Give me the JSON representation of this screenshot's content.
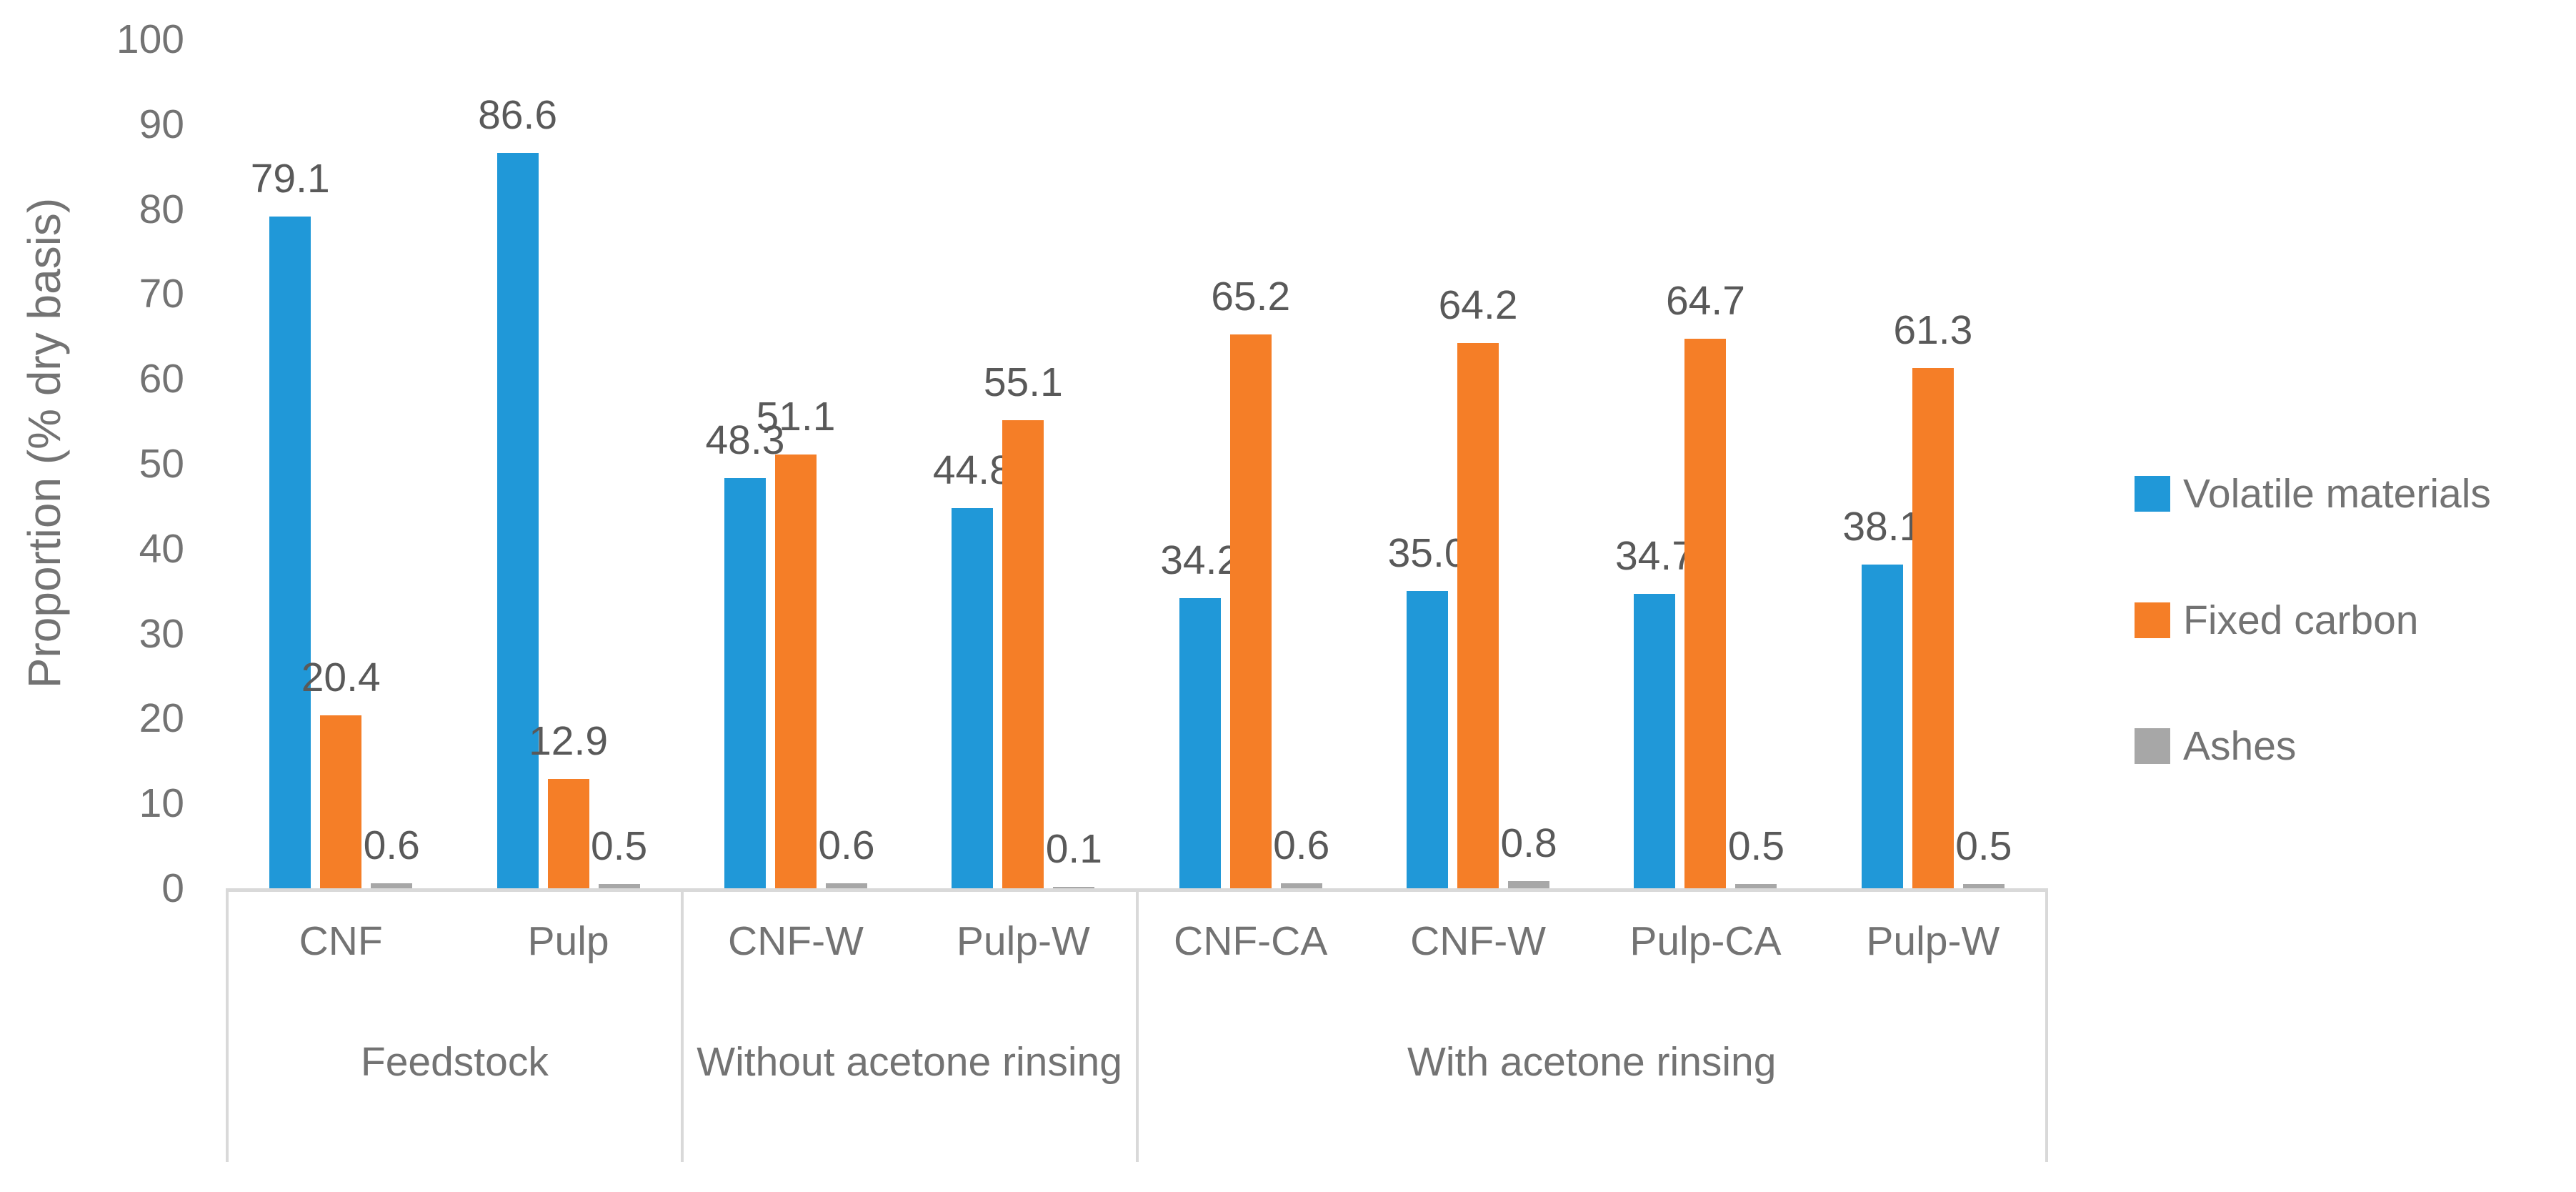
{
  "chart_data": {
    "type": "bar",
    "title": "",
    "ylabel": "Proportion (% dry basis)",
    "xlabel": "",
    "ylim": [
      0,
      100
    ],
    "yticks": [
      0,
      10,
      20,
      30,
      40,
      50,
      60,
      70,
      80,
      90,
      100
    ],
    "grid": false,
    "legend_position": "right",
    "value_labels": true,
    "value_label_decimals": 1,
    "groups": [
      {
        "label": "Feedstock",
        "categories": [
          "CNF",
          "Pulp"
        ]
      },
      {
        "label": "Without acetone rinsing",
        "categories": [
          "CNF-W",
          "Pulp-W"
        ]
      },
      {
        "label": "With acetone rinsing",
        "categories": [
          "CNF-CA",
          "CNF-W",
          "Pulp-CA",
          "Pulp-W"
        ]
      }
    ],
    "categories": [
      "CNF",
      "Pulp",
      "CNF-W",
      "Pulp-W",
      "CNF-CA",
      "CNF-W",
      "Pulp-CA",
      "Pulp-W"
    ],
    "series": [
      {
        "name": "Volatile materials",
        "color": "#2098D8",
        "values": [
          79.1,
          86.6,
          48.3,
          44.8,
          34.2,
          35.0,
          34.7,
          38.1
        ]
      },
      {
        "name": "Fixed carbon",
        "color": "#F57E27",
        "values": [
          20.4,
          12.9,
          51.1,
          55.1,
          65.2,
          64.2,
          64.7,
          61.3
        ]
      },
      {
        "name": "Ashes",
        "color": "#A7A7A7",
        "values": [
          0.6,
          0.5,
          0.6,
          0.1,
          0.6,
          0.8,
          0.5,
          0.5
        ]
      }
    ],
    "colors": {
      "axis_line": "#D9D9D9",
      "axis_text": "#737373",
      "value_label_text": "#595959"
    }
  }
}
